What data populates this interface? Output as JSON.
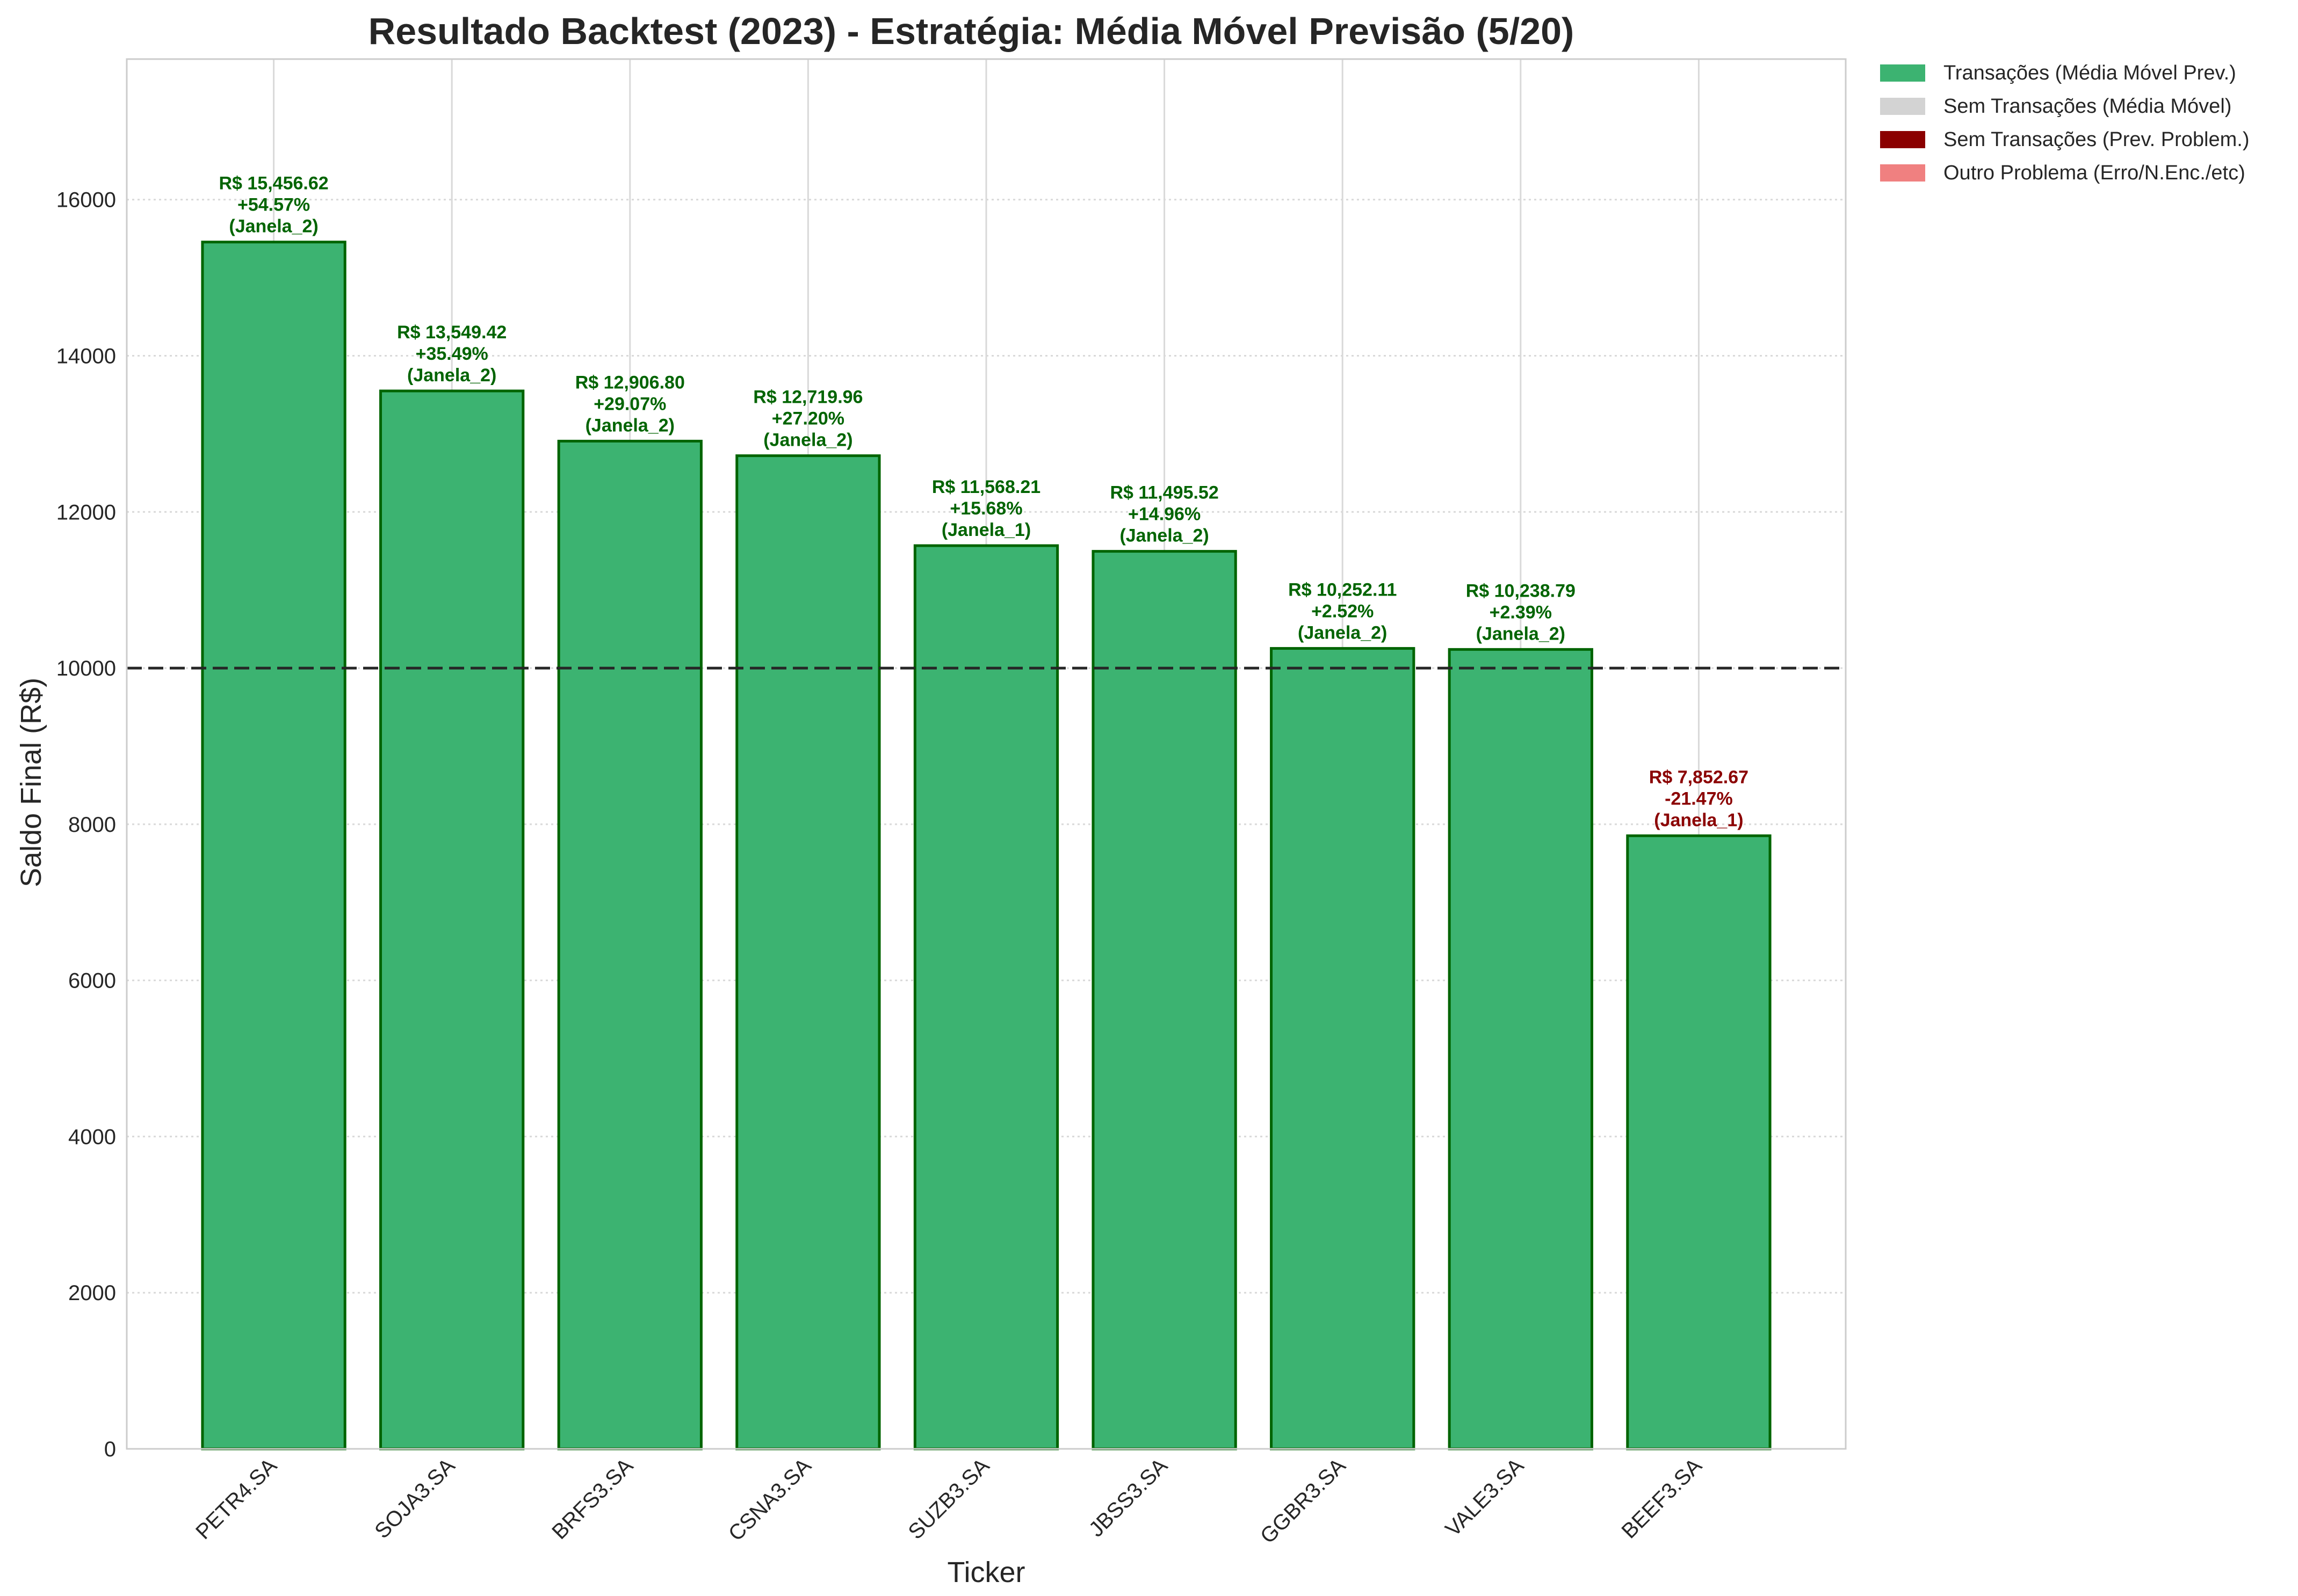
{
  "chart_data": {
    "type": "bar",
    "title": "Resultado Backtest (2023) - Estratégia: Média Móvel Previsão (5/20)",
    "xlabel": "Ticker",
    "ylabel": "Saldo Final (R$)",
    "ylim": [
      0,
      17800
    ],
    "yticks": [
      0,
      2000,
      4000,
      6000,
      8000,
      10000,
      12000,
      14000,
      16000
    ],
    "reference_line": 10000,
    "grid": true,
    "legend_position": "outside-top-right",
    "categories": [
      "PETR4.SA",
      "SOJA3.SA",
      "BRFS3.SA",
      "CSNA3.SA",
      "SUZB3.SA",
      "JBSS3.SA",
      "GGBR3.SA",
      "VALE3.SA",
      "BEEF3.SA"
    ],
    "values": [
      15456.62,
      13549.42,
      12906.8,
      12719.96,
      11568.21,
      11495.52,
      10252.11,
      10238.79,
      7852.67
    ],
    "bar_labels": [
      [
        "R$ 15,456.62",
        "+54.57%",
        "(Janela_2)"
      ],
      [
        "R$ 13,549.42",
        "+35.49%",
        "(Janela_2)"
      ],
      [
        "R$ 12,906.80",
        "+29.07%",
        "(Janela_2)"
      ],
      [
        "R$ 12,719.96",
        "+27.20%",
        "(Janela_2)"
      ],
      [
        "R$ 11,568.21",
        "+15.68%",
        "(Janela_1)"
      ],
      [
        "R$ 11,495.52",
        "+14.96%",
        "(Janela_2)"
      ],
      [
        "R$ 10,252.11",
        "+2.52%",
        "(Janela_2)"
      ],
      [
        "R$ 10,238.79",
        "+2.39%",
        "(Janela_2)"
      ],
      [
        "R$ 7,852.67",
        "-21.47%",
        "(Janela_1)"
      ]
    ],
    "legend": [
      {
        "label": "Transações (Média Móvel Prev.)",
        "color": "#3cb371"
      },
      {
        "label": "Sem Transações (Média Móvel)",
        "color": "#d3d3d3"
      },
      {
        "label": "Sem Transações (Prev. Problem.)",
        "color": "#8b0000"
      },
      {
        "label": "Outro Problema (Erro/N.Enc./etc)",
        "color": "#f08080"
      }
    ],
    "colors": {
      "bar_fill": "#3cb371",
      "bar_edge": "#006400",
      "positive_label": "#006400",
      "negative_label": "#8b0000"
    }
  }
}
